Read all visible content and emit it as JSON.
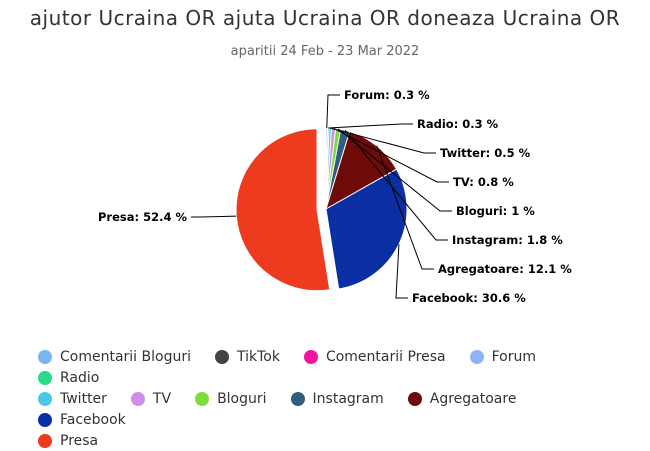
{
  "title": "ajutor Ucraina OR ajuta Ucraina OR doneaza Ucraina OR",
  "subtitle": "aparitii 24 Feb - 23 Mar 2022",
  "chart_data": {
    "type": "pie",
    "slices": [
      {
        "name": "Comentarii Bloguri",
        "value": 0.0,
        "color": "#7cb5ec",
        "label": ""
      },
      {
        "name": "TikTok",
        "value": 0.0,
        "color": "#434348",
        "label": ""
      },
      {
        "name": "Comentarii Presa",
        "value": 0.0,
        "color": "#f015a0",
        "label": ""
      },
      {
        "name": "Forum",
        "value": 0.3,
        "color": "#8eb4f5",
        "label": "Forum: 0.3 %"
      },
      {
        "name": "Radio",
        "value": 0.3,
        "color": "#2bd98a",
        "label": "Radio: 0.3 %"
      },
      {
        "name": "Twitter",
        "value": 0.5,
        "color": "#47c9e6",
        "label": "Twitter: 0.5 %"
      },
      {
        "name": "TV",
        "value": 0.8,
        "color": "#cf8de8",
        "label": "TV: 0.8 %"
      },
      {
        "name": "Bloguri",
        "value": 1,
        "color": "#7ddc3a",
        "label": "Bloguri: 1 %"
      },
      {
        "name": "Instagram",
        "value": 1.8,
        "color": "#2f5e80",
        "label": "Instagram: 1.8 %"
      },
      {
        "name": "Agregatoare",
        "value": 12.1,
        "color": "#6e0a0a",
        "label": "Agregatoare: 12.1 %"
      },
      {
        "name": "Facebook",
        "value": 30.6,
        "color": "#0a2fa3",
        "label": "Facebook: 30.6 %"
      },
      {
        "name": "Presa",
        "value": 52.4,
        "color": "#ee3a1f",
        "label": "Presa: 52.4 %"
      }
    ],
    "legend_placement": "bottom",
    "sliced": "Presa"
  }
}
